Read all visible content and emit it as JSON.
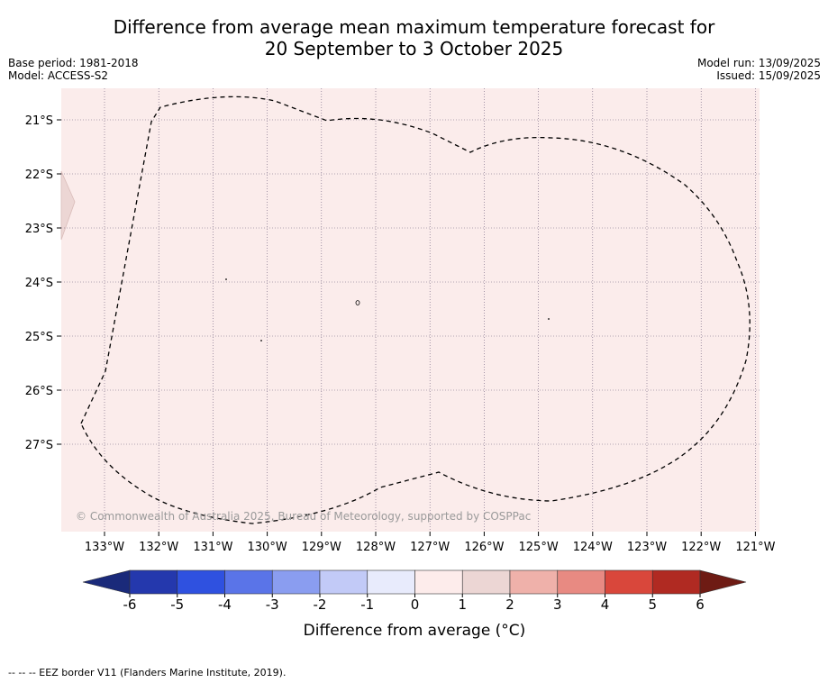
{
  "title": {
    "line1": "Difference from average mean maximum temperature forecast for",
    "line2": "20 September to 3 October 2025"
  },
  "meta_left": {
    "base_period": "Base period: 1981-2018",
    "model": "Model: ACCESS-S2"
  },
  "meta_right": {
    "model_run": "Model run: 13/09/2025",
    "issued": "Issued: 15/09/2025"
  },
  "map": {
    "lat_labels": [
      "21°S",
      "22°S",
      "23°S",
      "24°S",
      "25°S",
      "26°S",
      "27°S"
    ],
    "lon_labels": [
      "133°W",
      "132°W",
      "131°W",
      "130°W",
      "129°W",
      "128°W",
      "127°W",
      "126°W",
      "125°W",
      "124°W",
      "123°W",
      "122°W",
      "121°W"
    ],
    "background_color": "#fbeceb",
    "anomaly_category": "0 to 1",
    "west_edge_patch_category": "1 to 2",
    "copyright": "© Commonwealth of Australia 2025, Bureau of Meteorology, supported by COSPPac"
  },
  "colorbar": {
    "label": "Difference from average (°C)",
    "ticks": [
      "-6",
      "-5",
      "-4",
      "-3",
      "-2",
      "-1",
      "0",
      "1",
      "2",
      "3",
      "4",
      "5",
      "6"
    ],
    "under_color": "#1a2a7a",
    "over_color": "#6e1b14",
    "colors": [
      "#2438ad",
      "#2f51e0",
      "#5a74e8",
      "#8a9df0",
      "#c2caf7",
      "#e8ebfc",
      "#fdeceb",
      "#ecd6d4",
      "#efb1aa",
      "#e88a82",
      "#d9473b",
      "#b02a22"
    ]
  },
  "footnote": "--  --  -- EEZ border V11 (Flanders Marine Institute, 2019)."
}
